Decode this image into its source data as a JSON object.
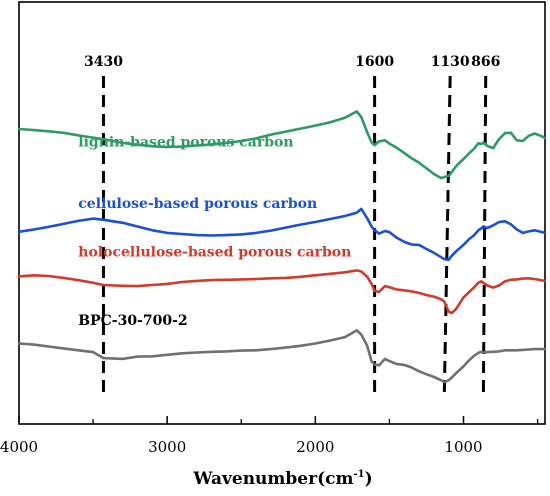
{
  "chart_data": {
    "type": "line",
    "title": "",
    "xlabel": "Wavenumber(cm",
    "xlabel_sup": "-1",
    "xlabel_close": ")",
    "ylabel": "",
    "xlim": [
      4000,
      450
    ],
    "x_reversed": true,
    "x_ticks": [
      4000,
      3000,
      2000,
      1000
    ],
    "x_tick_labels": [
      "4000",
      "3000",
      "2000",
      "1000"
    ],
    "y_ticks_shown": false,
    "ylim": [
      0,
      100
    ],
    "peak_markers": [
      {
        "label": "3430",
        "x_top": 3430,
        "x_bottom": 3430
      },
      {
        "label": "1600",
        "x_top": 1600,
        "x_bottom": 1600
      },
      {
        "label": "1130",
        "x_top": 1090,
        "x_bottom": 1130
      },
      {
        "label": "866",
        "x_top": 850,
        "x_bottom": 866
      }
    ],
    "series": [
      {
        "name": "lignin-based porous carbon",
        "color": "#2e9b63",
        "label_x": 3600,
        "label_y": 73,
        "x": [
          4000,
          3900,
          3800,
          3700,
          3600,
          3500,
          3430,
          3300,
          3200,
          3100,
          3000,
          2900,
          2800,
          2700,
          2600,
          2500,
          2400,
          2300,
          2200,
          2100,
          2000,
          1900,
          1800,
          1720,
          1690,
          1650,
          1620,
          1600,
          1570,
          1530,
          1500,
          1450,
          1400,
          1350,
          1300,
          1250,
          1200,
          1150,
          1130,
          1100,
          1080,
          1050,
          1000,
          960,
          930,
          900,
          880,
          866,
          840,
          800,
          760,
          720,
          680,
          640,
          600,
          560,
          520,
          480,
          450
        ],
        "y": [
          77.6,
          77.3,
          77.0,
          76.6,
          75.9,
          75.3,
          74.9,
          73.9,
          73.4,
          73.0,
          72.8,
          72.9,
          73.2,
          73.5,
          73.9,
          74.4,
          75.1,
          76.1,
          76.9,
          77.7,
          78.5,
          79.4,
          80.6,
          82.3,
          80.8,
          76.7,
          74.0,
          73.3,
          74.3,
          74.6,
          73.7,
          72.6,
          71.2,
          69.8,
          68.6,
          67.1,
          65.6,
          64.5,
          64.8,
          65.1,
          66.1,
          67.7,
          69.6,
          71.2,
          72.3,
          73.8,
          73.6,
          74.0,
          73.1,
          72.5,
          74.9,
          76.5,
          76.6,
          74.6,
          74.4,
          75.8,
          76.4,
          75.8,
          75.2
        ]
      },
      {
        "name": "cellulose-based porous carbon",
        "color": "#1a4fd8",
        "label_x": 3600,
        "label_y": 56.5,
        "x": [
          4000,
          3900,
          3800,
          3700,
          3600,
          3500,
          3430,
          3300,
          3200,
          3100,
          3000,
          2900,
          2800,
          2700,
          2600,
          2500,
          2400,
          2300,
          2200,
          2100,
          2000,
          1900,
          1800,
          1720,
          1690,
          1650,
          1620,
          1600,
          1570,
          1530,
          1500,
          1450,
          1400,
          1350,
          1300,
          1250,
          1200,
          1150,
          1130,
          1100,
          1080,
          1050,
          1000,
          960,
          930,
          900,
          880,
          866,
          840,
          800,
          760,
          720,
          680,
          640,
          600,
          560,
          520,
          480,
          450
        ],
        "y": [
          50.2,
          50.8,
          51.5,
          52.3,
          53.1,
          53.7,
          53.4,
          52.6,
          51.6,
          50.6,
          49.9,
          49.6,
          49.3,
          49.2,
          49.3,
          49.5,
          49.9,
          50.5,
          51.3,
          52.1,
          52.8,
          53.6,
          54.4,
          55.3,
          56.3,
          53.8,
          51.6,
          50.6,
          49.7,
          50.4,
          50.1,
          48.6,
          47.5,
          46.8,
          46.7,
          45.6,
          44.6,
          43.4,
          42.9,
          42.7,
          43.8,
          45.0,
          46.7,
          48.3,
          49.2,
          50.6,
          51.1,
          51.6,
          51.2,
          51.9,
          52.8,
          53.0,
          52.2,
          50.8,
          49.9,
          50.3,
          50.6,
          50.2,
          49.9
        ]
      },
      {
        "name": "holocellulose-based porous carbon",
        "color": "#d23a2c",
        "label_x": 3600,
        "label_y": 43.6,
        "x": [
          4000,
          3900,
          3800,
          3700,
          3600,
          3500,
          3430,
          3300,
          3200,
          3100,
          3000,
          2900,
          2800,
          2700,
          2600,
          2500,
          2400,
          2300,
          2200,
          2100,
          2000,
          1900,
          1800,
          1720,
          1690,
          1650,
          1620,
          1600,
          1570,
          1530,
          1500,
          1450,
          1400,
          1350,
          1300,
          1250,
          1200,
          1150,
          1130,
          1100,
          1080,
          1050,
          1000,
          960,
          930,
          900,
          880,
          866,
          840,
          800,
          760,
          720,
          680,
          640,
          600,
          560,
          520,
          480,
          450
        ],
        "y": [
          38.3,
          38.6,
          38.4,
          37.9,
          37.3,
          36.6,
          36.0,
          35.8,
          35.7,
          36.0,
          36.3,
          36.8,
          37.1,
          37.3,
          37.4,
          37.5,
          37.6,
          37.8,
          37.9,
          38.2,
          38.6,
          39.0,
          39.4,
          39.9,
          39.6,
          38.2,
          36.3,
          34.4,
          34.2,
          35.7,
          35.4,
          34.8,
          34.6,
          34.3,
          33.9,
          33.3,
          32.9,
          32.2,
          31.6,
          28.9,
          28.5,
          29.6,
          32.7,
          34.2,
          35.3,
          36.6,
          37.0,
          36.6,
          35.9,
          35.3,
          35.9,
          37.0,
          37.4,
          37.5,
          37.7,
          37.8,
          37.6,
          37.3,
          37.1
        ]
      },
      {
        "name": "BPC-30-700-2",
        "color": "#707070",
        "label_x": 3600,
        "label_y": 25.4,
        "x": [
          4000,
          3900,
          3800,
          3700,
          3600,
          3500,
          3430,
          3300,
          3200,
          3100,
          3000,
          2900,
          2800,
          2700,
          2600,
          2500,
          2400,
          2300,
          2200,
          2100,
          2000,
          1900,
          1800,
          1720,
          1690,
          1650,
          1620,
          1600,
          1570,
          1530,
          1500,
          1450,
          1400,
          1350,
          1300,
          1250,
          1200,
          1150,
          1130,
          1100,
          1080,
          1050,
          1000,
          960,
          930,
          900,
          880,
          866,
          840,
          800,
          760,
          720,
          680,
          640,
          600,
          560,
          520,
          480,
          450
        ],
        "y": [
          20.4,
          20.1,
          19.6,
          19.1,
          18.6,
          18.1,
          16.5,
          16.3,
          16.9,
          17.0,
          17.4,
          17.8,
          18.0,
          18.2,
          18.3,
          18.5,
          18.6,
          18.9,
          19.3,
          19.8,
          20.4,
          21.2,
          22.1,
          23.9,
          22.8,
          19.8,
          15.6,
          14.8,
          14.6,
          16.3,
          15.7,
          14.9,
          14.7,
          14.0,
          13.0,
          12.2,
          11.5,
          10.6,
          10.1,
          10.6,
          11.3,
          12.5,
          14.3,
          16.0,
          17.1,
          17.9,
          18.2,
          18.0,
          18.1,
          18.2,
          18.3,
          18.6,
          18.6,
          18.6,
          18.7,
          18.8,
          18.9,
          18.9,
          18.9
        ]
      }
    ]
  }
}
